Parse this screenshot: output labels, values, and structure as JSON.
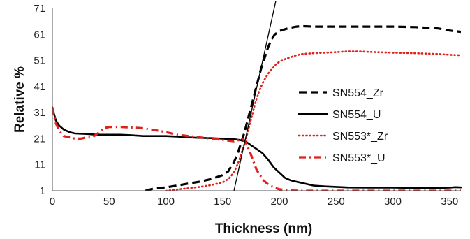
{
  "chart_data": {
    "type": "line",
    "xlabel": "Thickness (nm)",
    "ylabel": "Relative %",
    "xlim": [
      0,
      360
    ],
    "ylim": [
      1,
      71
    ],
    "x_ticks": [
      "0",
      "50",
      "100",
      "150",
      "200",
      "250",
      "300",
      "350"
    ],
    "y_ticks": [
      "1",
      "11",
      "21",
      "31",
      "41",
      "51",
      "61",
      "71"
    ],
    "grid": false,
    "legend_position": "right",
    "series": [
      {
        "name": "SN554_Zr",
        "color": "#000000",
        "style": "dashed",
        "x": [
          82,
          90,
          100,
          110,
          120,
          130,
          140,
          150,
          155,
          160,
          163,
          166,
          169,
          172,
          175,
          178,
          181,
          184,
          187,
          190,
          193,
          196,
          200,
          205,
          210,
          215,
          220,
          230,
          240,
          250,
          260,
          280,
          300,
          320,
          340,
          350,
          360
        ],
        "y": [
          1,
          2,
          2.3,
          3,
          3.8,
          4.5,
          5.5,
          7,
          8.5,
          12,
          15,
          19,
          23,
          28,
          33,
          38,
          43,
          48,
          52,
          56,
          59,
          61,
          62.3,
          63,
          63.6,
          64,
          64.2,
          64,
          64,
          64,
          64,
          64,
          64,
          63.8,
          63.3,
          62.5,
          62
        ]
      },
      {
        "name": "SN554_U",
        "color": "#000000",
        "style": "solid",
        "x": [
          0,
          3,
          6,
          10,
          15,
          20,
          30,
          40,
          50,
          60,
          70,
          80,
          90,
          100,
          110,
          120,
          130,
          140,
          150,
          160,
          165,
          170,
          175,
          180,
          185,
          190,
          195,
          200,
          205,
          210,
          220,
          230,
          240,
          250,
          260,
          280,
          300,
          320,
          340,
          350,
          355,
          360
        ],
        "y": [
          33,
          28,
          26,
          24.5,
          23.5,
          23,
          22.8,
          22.5,
          22.5,
          22.5,
          22.3,
          22,
          22,
          22,
          21.8,
          21.5,
          21.3,
          21.2,
          21,
          20.8,
          20.5,
          20,
          18.5,
          17,
          15.5,
          13,
          10,
          8,
          6,
          5,
          4,
          3,
          2.7,
          2.5,
          2.3,
          2.2,
          2.2,
          2.1,
          2.1,
          2.2,
          2.4,
          2.3
        ]
      },
      {
        "name": "SN553*_Zr",
        "color": "#e0201a",
        "style": "dotted",
        "x": [
          100,
          110,
          120,
          130,
          140,
          150,
          155,
          158,
          161,
          164,
          167,
          170,
          173,
          176,
          179,
          182,
          185,
          188,
          191,
          194,
          197,
          200,
          205,
          210,
          215,
          220,
          230,
          240,
          250,
          260,
          270,
          280,
          300,
          320,
          340,
          350,
          360
        ],
        "y": [
          1,
          1.5,
          2,
          2.5,
          3.2,
          4.2,
          5.5,
          7,
          9,
          12,
          16,
          20,
          25,
          30,
          35,
          39,
          42,
          44.5,
          46.5,
          48,
          49.5,
          50.5,
          51.5,
          52.3,
          53,
          53.5,
          53.8,
          54,
          54.2,
          54.5,
          54.5,
          54.3,
          54,
          53.8,
          53.5,
          53.2,
          53
        ]
      },
      {
        "name": "SN553*_U",
        "color": "#e0201a",
        "style": "dashdot",
        "x": [
          0,
          3,
          6,
          10,
          15,
          20,
          25,
          30,
          35,
          40,
          45,
          50,
          60,
          70,
          80,
          90,
          100,
          110,
          120,
          130,
          140,
          150,
          160,
          165,
          168,
          171,
          174,
          177,
          180,
          183,
          186,
          190,
          195,
          200,
          205,
          210,
          220,
          230,
          250,
          270,
          300,
          330,
          360
        ],
        "y": [
          33,
          27,
          24,
          22,
          21.5,
          21,
          21,
          21.5,
          21.5,
          23,
          25,
          25.5,
          25.5,
          25.3,
          25,
          24.3,
          23.5,
          22.5,
          22,
          21.5,
          21,
          20.5,
          20,
          20.5,
          20.8,
          19,
          16,
          12.5,
          9,
          7,
          5,
          3.5,
          2.3,
          1.6,
          1.3,
          1.1,
          1,
          1,
          1,
          1,
          1,
          1,
          1
        ]
      },
      {
        "name": "",
        "color": "#000000",
        "style": "thin",
        "x": [
          160,
          197
        ],
        "y": [
          1,
          74
        ]
      }
    ]
  }
}
